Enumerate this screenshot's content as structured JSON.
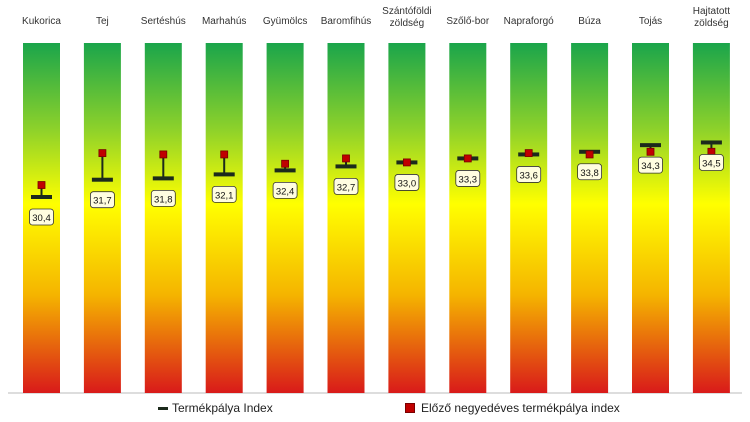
{
  "chart_data": {
    "type": "bar",
    "categories": [
      "Kukorica",
      "Tej",
      "Sertéshús",
      "Marhahús",
      "Gyümölcs",
      "Baromfihús",
      "Szántóföldi\nzöldség",
      "Szőlő-bor",
      "Napraforgó",
      "Búza",
      "Tojás",
      "Hajtatott\nzöldség"
    ],
    "series": [
      {
        "name": "Termékpálya Index",
        "values": [
          30.4,
          31.7,
          31.8,
          32.1,
          32.4,
          32.7,
          33.0,
          33.3,
          33.6,
          33.8,
          34.3,
          34.5
        ]
      },
      {
        "name": "Előző negyedéves termékpálya index",
        "values": [
          31.3,
          33.7,
          33.6,
          33.6,
          32.9,
          33.3,
          33.0,
          33.3,
          33.7,
          33.6,
          33.8,
          33.8
        ]
      }
    ],
    "data_labels": [
      "30,4",
      "31,7",
      "31,8",
      "32,1",
      "32,4",
      "32,7",
      "33,0",
      "33,3",
      "33,6",
      "33,8",
      "34,3",
      "34,5"
    ],
    "colors": {
      "green": "#1aa54b",
      "yellow": "#ffff00",
      "red": "#d91a1a",
      "index_marker": "#1c2a1c",
      "previous_marker": "#c00000"
    }
  },
  "legend": {
    "index_label": "Termékpálya Index",
    "previous_label": "Előző negyedéves termékpálya index"
  }
}
